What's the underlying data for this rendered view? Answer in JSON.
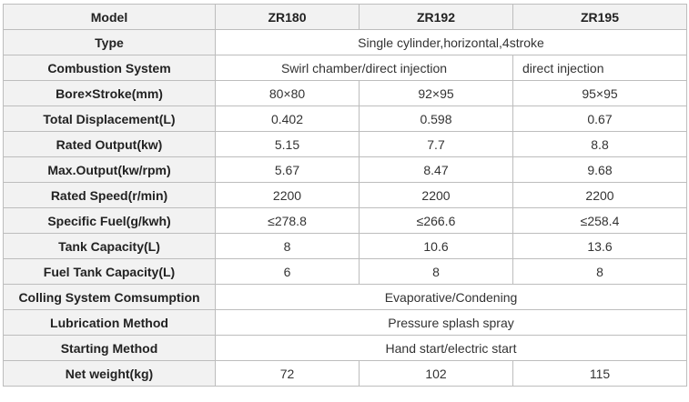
{
  "table": {
    "header": {
      "label": "Model",
      "models": [
        "ZR180",
        "ZR192",
        "ZR195"
      ]
    },
    "rows": [
      {
        "label": "Type",
        "merged": "Single cylinder,horizontal,4stroke"
      },
      {
        "label": "Combustion System",
        "merged2": "Swirl chamber/direct injection",
        "last": "direct injection"
      },
      {
        "label": "Bore×Stroke(mm)",
        "values": [
          "80×80",
          "92×95",
          "95×95"
        ]
      },
      {
        "label": "Total Displacement(L)",
        "values": [
          "0.402",
          "0.598",
          "0.67"
        ]
      },
      {
        "label": "Rated Output(kw)",
        "values": [
          "5.15",
          "7.7",
          "8.8"
        ]
      },
      {
        "label": "Max.Output(kw/rpm)",
        "values": [
          "5.67",
          "8.47",
          "9.68"
        ]
      },
      {
        "label": "Rated Speed(r/min)",
        "values": [
          "2200",
          "2200",
          "2200"
        ]
      },
      {
        "label": "Specific Fuel(g/kwh)",
        "values": [
          "≤278.8",
          "≤266.6",
          "≤258.4"
        ]
      },
      {
        "label": "Tank Capacity(L)",
        "values": [
          "8",
          "10.6",
          "13.6"
        ]
      },
      {
        "label": "Fuel Tank Capacity(L)",
        "values": [
          "6",
          "8",
          "8"
        ]
      },
      {
        "label": "Colling System Comsumption",
        "merged": "Evaporative/Condening"
      },
      {
        "label": "Lubrication Method",
        "merged": "Pressure splash spray"
      },
      {
        "label": "Starting Method",
        "merged": "Hand start/electric start"
      },
      {
        "label": "Net weight(kg)",
        "values": [
          "72",
          "102",
          "115"
        ]
      }
    ]
  }
}
